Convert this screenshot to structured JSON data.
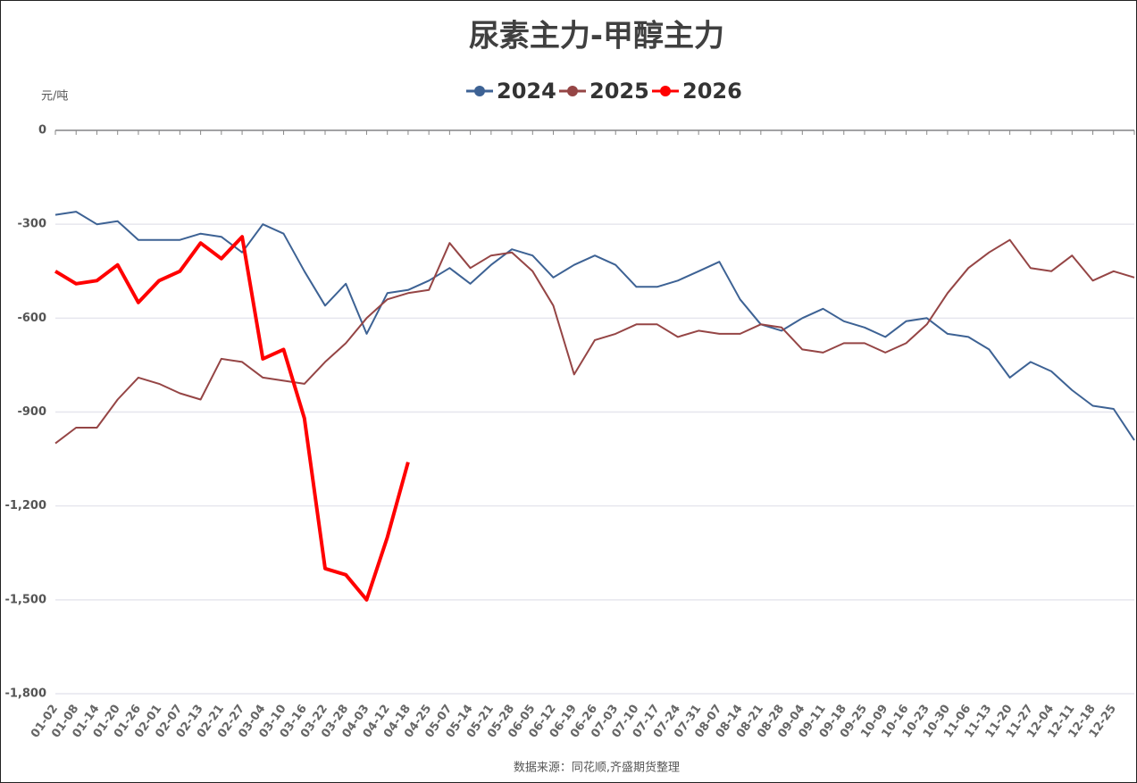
{
  "chart_data": {
    "type": "line",
    "title": "尿素主力-甲醇主力",
    "y_label": "元/吨",
    "source": "数据来源：同花顺,齐盛期货整理",
    "categories": [
      "01-02",
      "01-08",
      "01-14",
      "01-20",
      "01-26",
      "02-01",
      "02-07",
      "02-13",
      "02-21",
      "02-27",
      "03-04",
      "03-10",
      "03-16",
      "03-22",
      "03-28",
      "04-03",
      "04-12",
      "04-18",
      "04-25",
      "05-07",
      "05-14",
      "05-21",
      "05-28",
      "06-05",
      "06-12",
      "06-19",
      "06-26",
      "07-03",
      "07-10",
      "07-17",
      "07-24",
      "07-31",
      "08-07",
      "08-14",
      "08-21",
      "08-28",
      "09-04",
      "09-11",
      "09-18",
      "09-25",
      "10-09",
      "10-16",
      "10-23",
      "10-30",
      "11-06",
      "11-13",
      "11-20",
      "11-27",
      "12-04",
      "12-11",
      "12-18",
      "12-25",
      null
    ],
    "series": [
      {
        "name": "2024",
        "color": "#3d6294",
        "width": 2,
        "values": [
          -270,
          -260,
          -300,
          -290,
          -350,
          -350,
          -350,
          -330,
          -340,
          -390,
          -300,
          -330,
          -450,
          -560,
          -490,
          -650,
          -520,
          -510,
          -480,
          -440,
          -490,
          -430,
          -380,
          -400,
          -470,
          -430,
          -400,
          -430,
          -500,
          -500,
          -480,
          -450,
          -420,
          -540,
          -620,
          -640,
          -600,
          -570,
          -610,
          -630,
          -660,
          -610,
          -600,
          -650,
          -660,
          -700,
          -790,
          -740,
          -770,
          -830,
          -880,
          -890,
          -990
        ]
      },
      {
        "name": "2025",
        "color": "#954545",
        "width": 2,
        "values": [
          -1000,
          -950,
          -950,
          -860,
          -790,
          -810,
          -840,
          -860,
          -730,
          -740,
          -790,
          -800,
          -810,
          -740,
          -680,
          -600,
          -540,
          -520,
          -510,
          -360,
          -440,
          -400,
          -390,
          -450,
          -560,
          -780,
          -670,
          -650,
          -620,
          -620,
          -660,
          -640,
          -650,
          -650,
          -620,
          -630,
          -700,
          -710,
          -680,
          -680,
          -710,
          -680,
          -620,
          -520,
          -440,
          -390,
          -350,
          -440,
          -450,
          -400,
          -480,
          -450,
          -470
        ]
      },
      {
        "name": "2026",
        "color": "#ff0000",
        "width": 4,
        "values": [
          -450,
          -490,
          -480,
          -430,
          -550,
          -480,
          -450,
          -360,
          -410,
          -340,
          -730,
          -700,
          -920,
          -1400,
          -1420,
          -1500,
          -1300,
          -1060,
          null,
          null,
          null,
          null,
          null,
          null,
          null,
          null,
          null,
          null,
          null,
          null,
          null,
          null,
          null,
          null,
          null,
          null,
          null,
          null,
          null,
          null,
          null,
          null,
          null,
          null,
          null,
          null,
          null,
          null,
          null,
          null,
          null,
          null,
          null
        ]
      }
    ],
    "ylim": [
      -1800,
      0
    ],
    "yticks": [
      0,
      -300,
      -600,
      -900,
      {
        "value": -1200,
        "label": "-1,200"
      },
      {
        "value": -1500,
        "label": "-1,500"
      },
      {
        "value": -1800,
        "label": "-1,800"
      }
    ],
    "grid": true
  }
}
